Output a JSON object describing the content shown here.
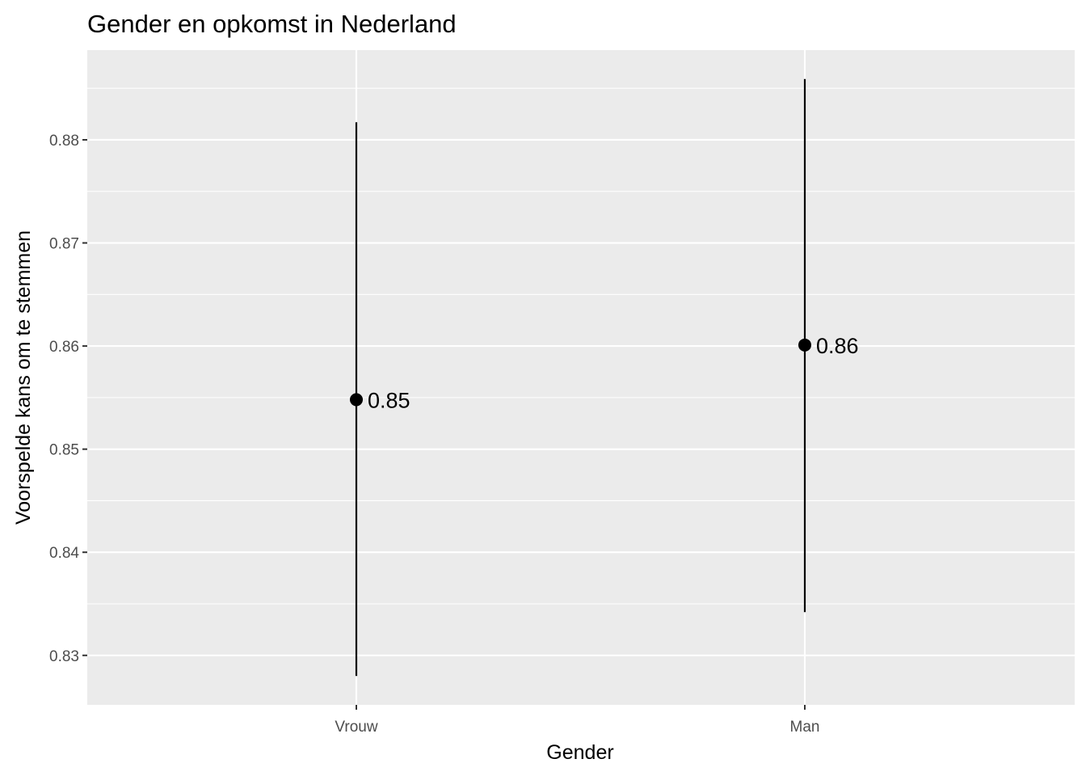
{
  "chart_data": {
    "type": "scatter",
    "title": "Gender en opkomst in Nederland",
    "xlabel": "Gender",
    "ylabel": "Voorspelde kans om te stemmen",
    "categories": [
      "Vrouw",
      "Man"
    ],
    "values": [
      0.8548,
      0.8601
    ],
    "ci_lower": [
      0.828,
      0.8342
    ],
    "ci_upper": [
      0.8817,
      0.8859
    ],
    "point_labels": [
      "0.85",
      "0.86"
    ],
    "yticks": [
      0.83,
      0.84,
      0.85,
      0.86,
      0.87,
      0.88
    ],
    "ytick_labels": [
      "0.83",
      "0.84",
      "0.85",
      "0.86",
      "0.87",
      "0.88"
    ],
    "ylim": [
      0.8252,
      0.8887
    ],
    "grid": true,
    "legend": "none",
    "colors": {
      "panel": "#ebebeb",
      "grid": "#ffffff",
      "marks": "#000000",
      "tick_text": "#4d4d4d"
    }
  }
}
